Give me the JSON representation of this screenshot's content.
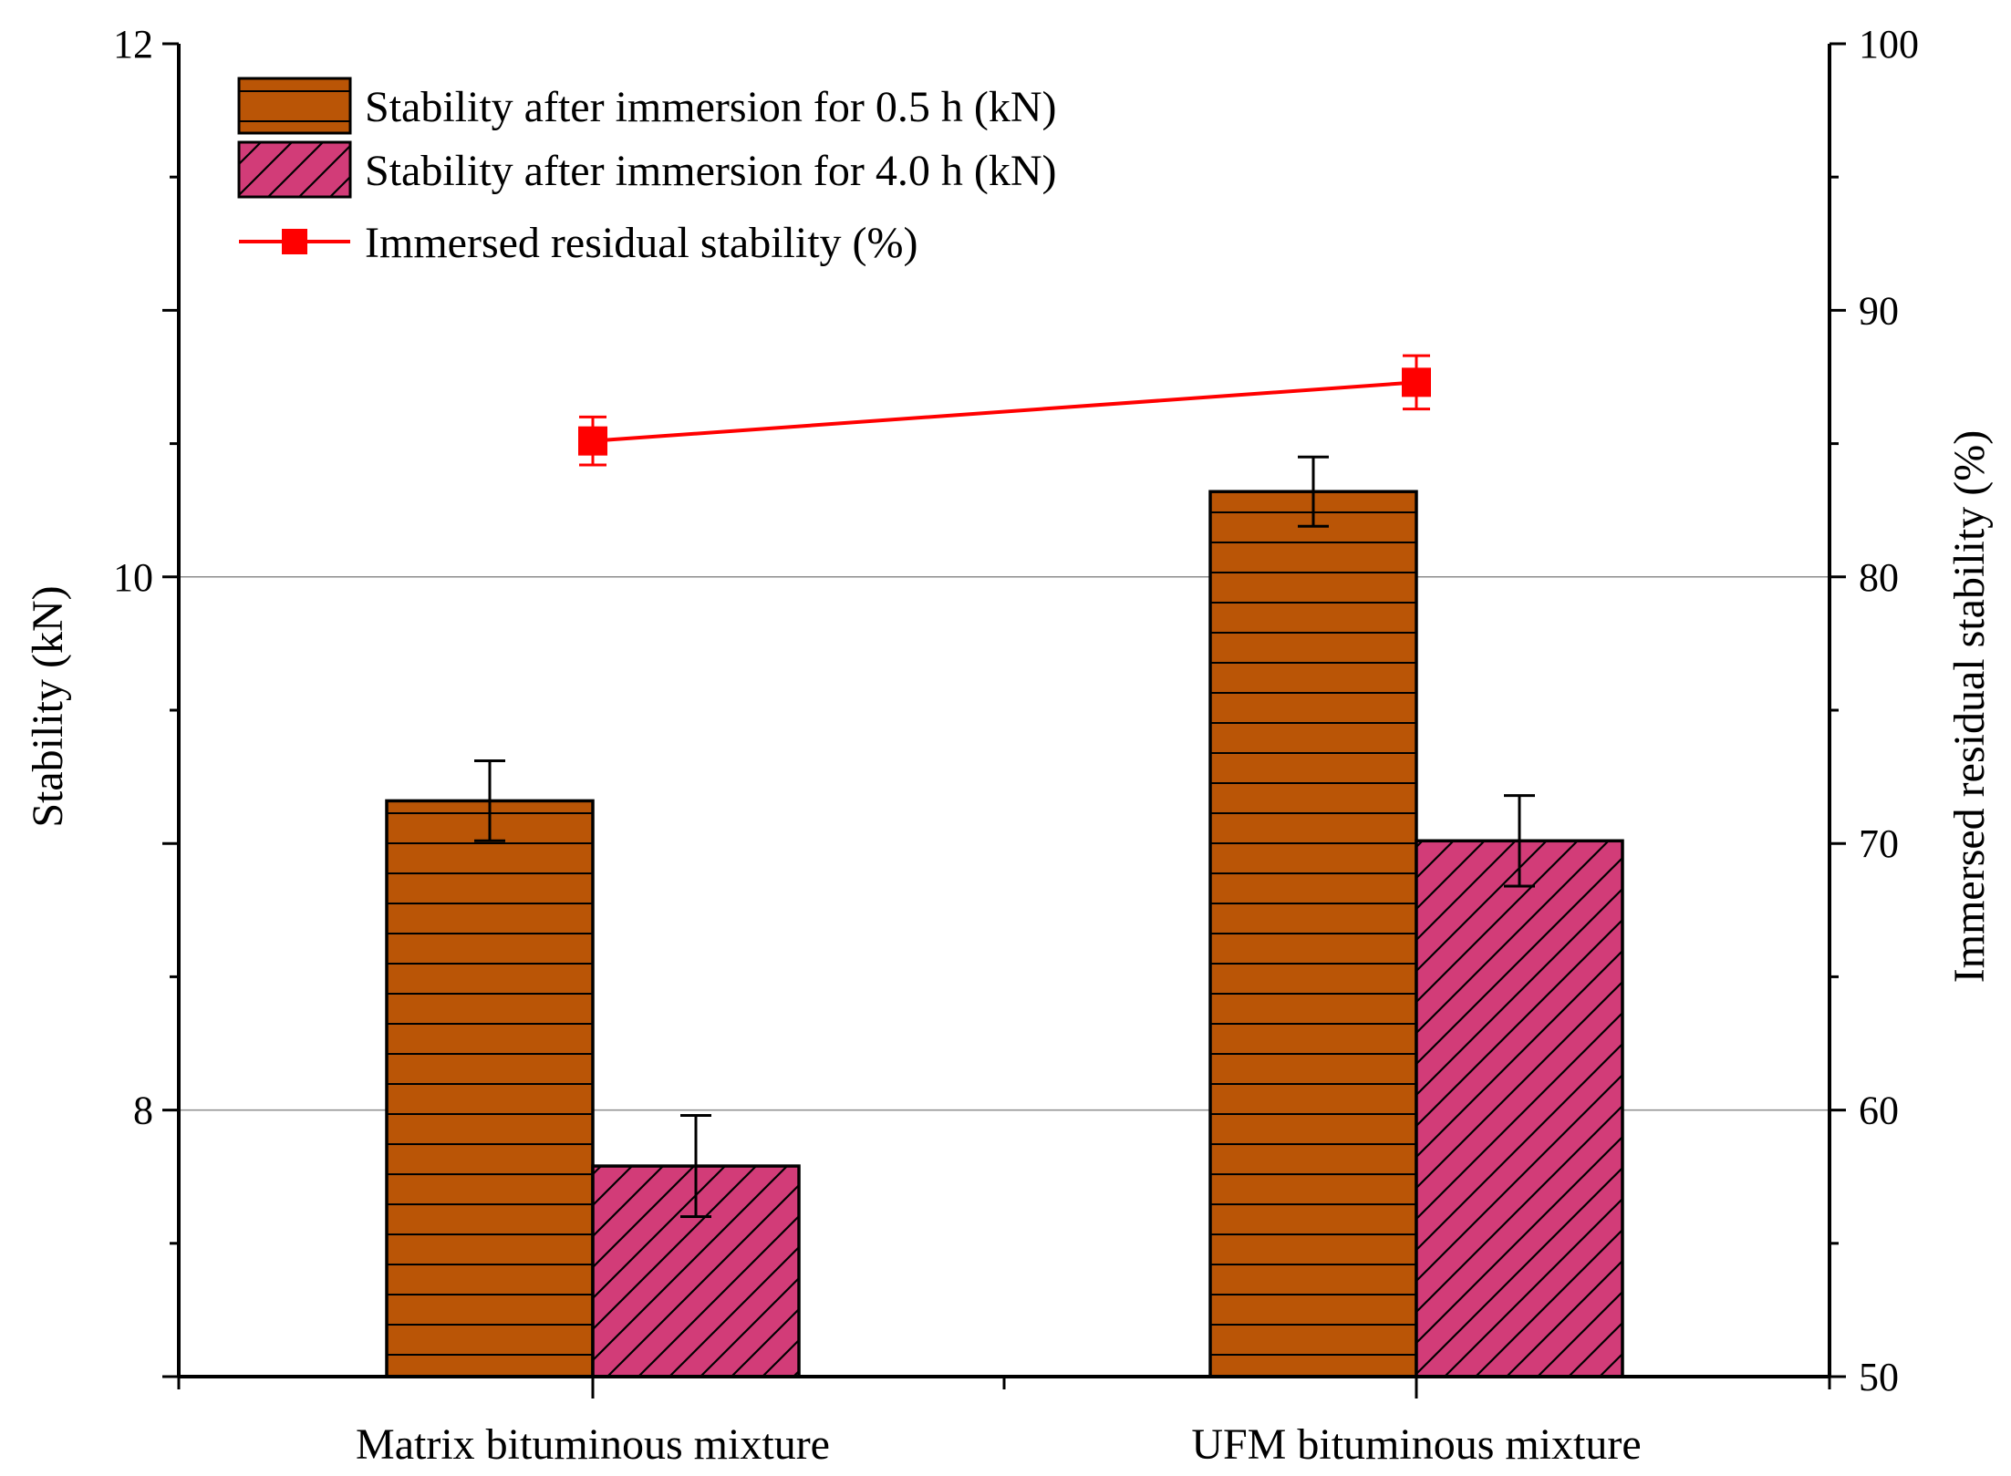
{
  "chart_data": {
    "type": "bar",
    "categories": [
      "Matrix bituminous mixture",
      "UFM bituminous mixture"
    ],
    "series": [
      {
        "name": "Stability after immersion for 0.5 h (kN)",
        "axis": "left",
        "color": "#BA5506",
        "pattern": "horizontal-lines",
        "values": [
          9.16,
          10.32
        ],
        "errors": [
          0.15,
          0.13
        ]
      },
      {
        "name": "Stability after immersion for 4.0 h (kN)",
        "axis": "left",
        "color": "#D23C78",
        "pattern": "diagonal-hatch",
        "values": [
          7.79,
          9.01
        ],
        "errors": [
          0.19,
          0.17
        ]
      },
      {
        "name": "Immersed residual stability (%)",
        "axis": "right",
        "type": "line",
        "color": "#FF0000",
        "marker": "square",
        "values": [
          85.1,
          87.3
        ],
        "errors": [
          0.9,
          1.0
        ]
      }
    ],
    "ylabel": "Stability (kN)",
    "y2label": "Immersed residual stability (%)",
    "ylim": [
      7,
      12
    ],
    "y2lim": [
      50,
      100
    ],
    "yticks": [
      8,
      10,
      12
    ],
    "y2ticks": [
      50,
      60,
      70,
      80,
      90,
      100
    ],
    "gridlines_at": [
      8,
      10
    ],
    "legend_position": "top-left"
  }
}
